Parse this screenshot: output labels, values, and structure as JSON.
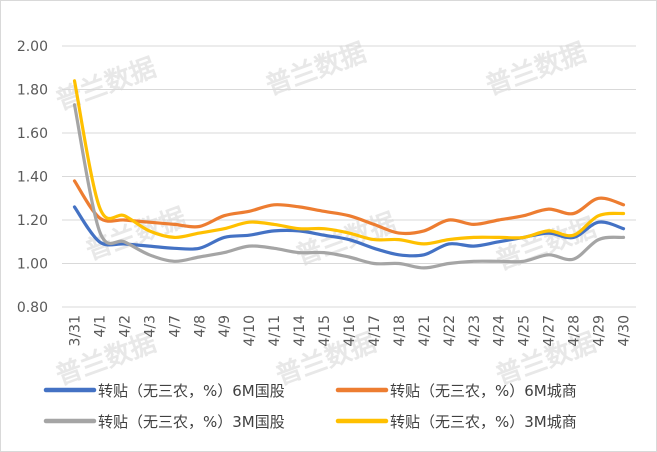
{
  "chart_data": {
    "type": "line",
    "categories": [
      "3/31",
      "4/1",
      "4/2",
      "4/3",
      "4/7",
      "4/8",
      "4/9",
      "4/10",
      "4/11",
      "4/14",
      "4/15",
      "4/16",
      "4/17",
      "4/18",
      "4/21",
      "4/22",
      "4/23",
      "4/24",
      "4/25",
      "4/27",
      "4/28",
      "4/29",
      "4/30"
    ],
    "ylim": [
      0.8,
      2.0
    ],
    "yticks": [
      "0.80",
      "1.00",
      "1.20",
      "1.40",
      "1.60",
      "1.80",
      "2.00"
    ],
    "series": [
      {
        "name": "转贴（无三农，%）6M国股",
        "color": "#4472C4",
        "values": [
          1.26,
          1.1,
          1.09,
          1.08,
          1.07,
          1.07,
          1.12,
          1.13,
          1.15,
          1.15,
          1.13,
          1.11,
          1.07,
          1.04,
          1.04,
          1.09,
          1.08,
          1.1,
          1.12,
          1.14,
          1.12,
          1.19,
          1.16
        ]
      },
      {
        "name": "转贴（无三农，%）6M城商",
        "color": "#ED7D31",
        "values": [
          1.38,
          1.21,
          1.2,
          1.19,
          1.18,
          1.17,
          1.22,
          1.24,
          1.27,
          1.26,
          1.24,
          1.22,
          1.18,
          1.14,
          1.15,
          1.2,
          1.18,
          1.2,
          1.22,
          1.25,
          1.23,
          1.3,
          1.27
        ]
      },
      {
        "name": "转贴（无三农，%）3M国股",
        "color": "#A5A5A5",
        "values": [
          1.73,
          1.15,
          1.1,
          1.04,
          1.01,
          1.03,
          1.05,
          1.08,
          1.07,
          1.05,
          1.05,
          1.03,
          1.0,
          1.0,
          0.98,
          1.0,
          1.01,
          1.01,
          1.01,
          1.04,
          1.02,
          1.11,
          1.12
        ]
      },
      {
        "name": "转贴（无三农，%）3M城商",
        "color": "#FFC000",
        "values": [
          1.84,
          1.26,
          1.22,
          1.15,
          1.12,
          1.14,
          1.16,
          1.19,
          1.18,
          1.16,
          1.16,
          1.14,
          1.11,
          1.11,
          1.09,
          1.11,
          1.12,
          1.12,
          1.12,
          1.15,
          1.13,
          1.22,
          1.23
        ]
      }
    ],
    "grid": "horizontal",
    "legend": "bottom"
  },
  "watermark": "普兰数据"
}
